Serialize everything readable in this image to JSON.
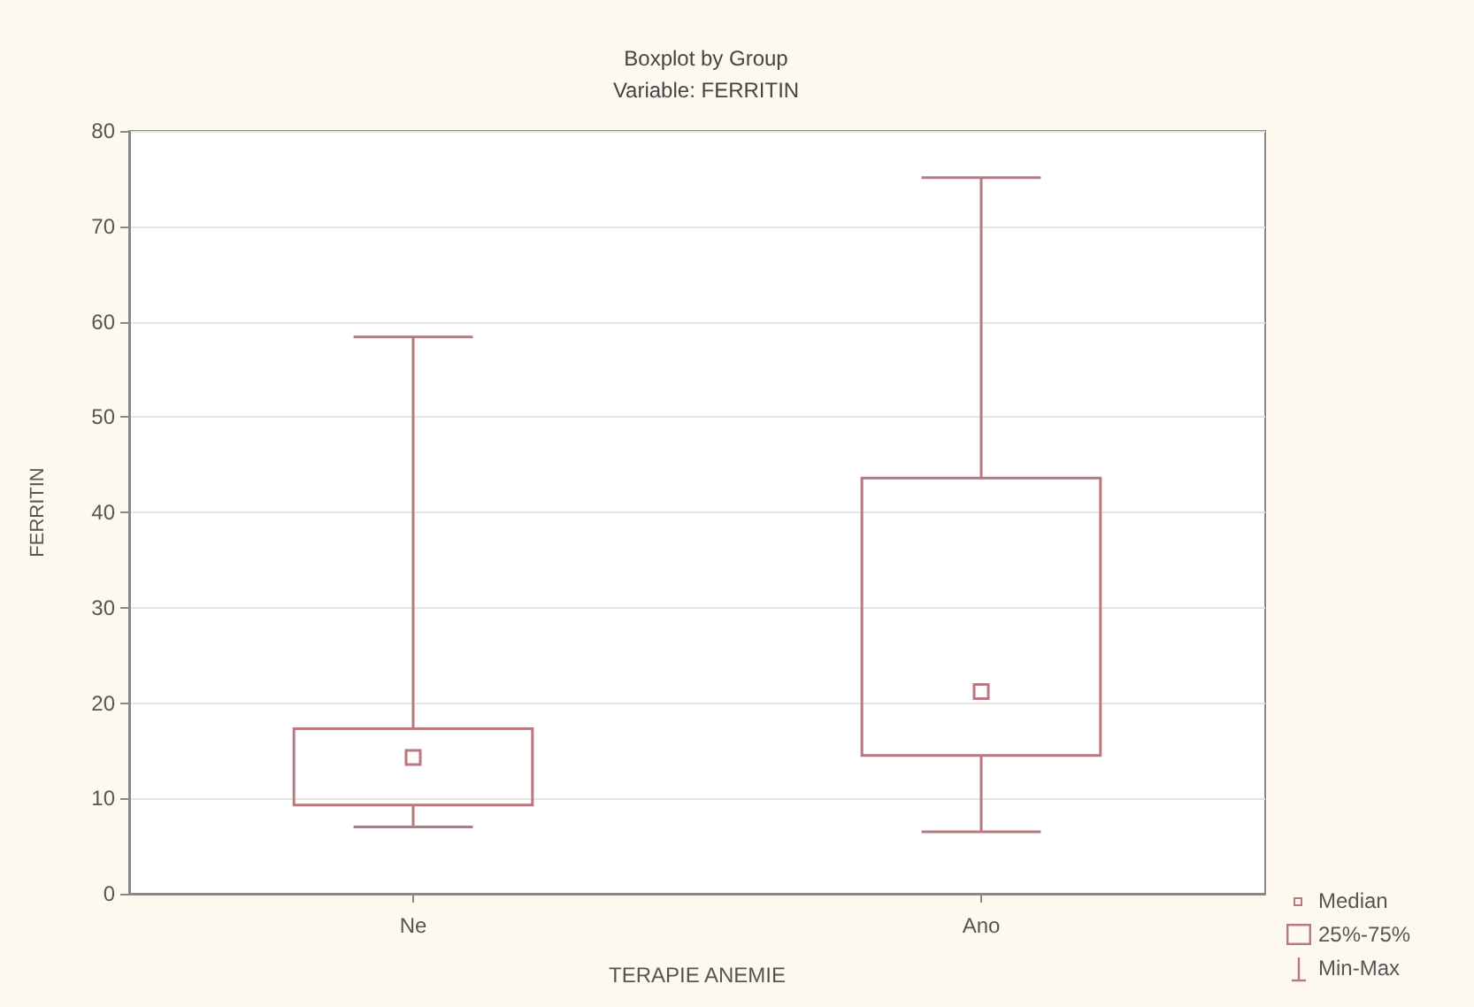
{
  "chart_data": {
    "type": "box",
    "title": "Boxplot by Group",
    "subtitle": "Variable: FERRITIN",
    "xlabel": "TERAPIE ANEMIE",
    "ylabel": "FERRITIN",
    "categories": [
      "Ne",
      "Ano"
    ],
    "color": "#b87880",
    "boxes": [
      {
        "low": 7.0,
        "q1": 9.3,
        "median": 14.3,
        "q3": 17.3,
        "high": 58.4
      },
      {
        "low": 6.5,
        "q1": 14.5,
        "median": 21.2,
        "q3": 43.6,
        "high": 75.1
      }
    ],
    "ylim": [
      0,
      80
    ],
    "yticks": [
      0,
      10,
      20,
      30,
      40,
      50,
      60,
      70,
      80
    ],
    "grid": "y",
    "annotations": [
      "Median",
      "25%-75%",
      "Min-Max"
    ]
  }
}
